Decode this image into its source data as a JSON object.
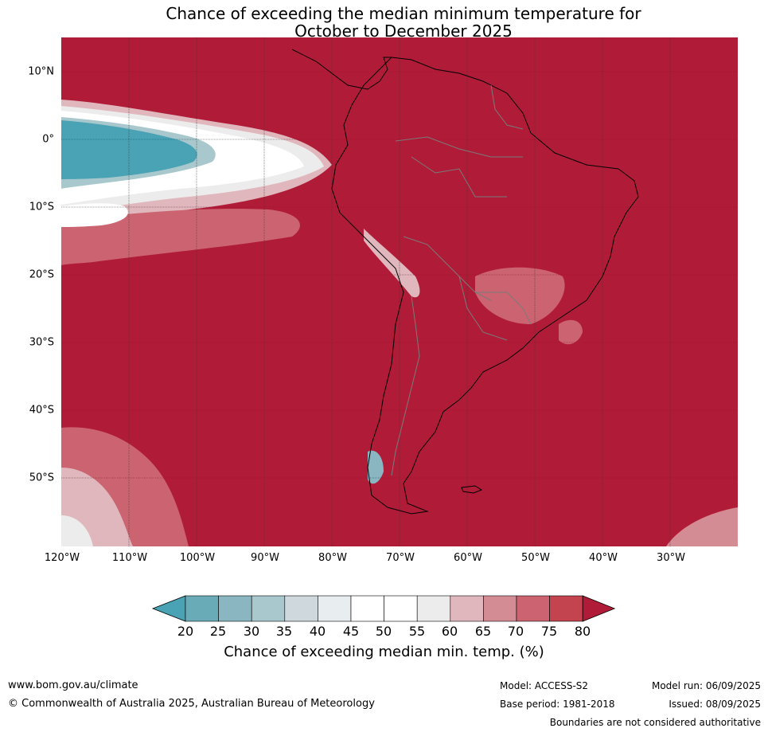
{
  "title": {
    "line1": "Chance of exceeding the median minimum temperature for",
    "line2": "October to December 2025"
  },
  "map": {
    "lat_labels": [
      "10°N",
      "0°",
      "10°S",
      "20°S",
      "30°S",
      "40°S",
      "50°S"
    ],
    "lon_labels": [
      "120°W",
      "110°W",
      "100°W",
      "90°W",
      "80°W",
      "70°W",
      "60°W",
      "50°W",
      "40°W",
      "30°W"
    ],
    "dominant_category": "80+",
    "colors": {
      "above_80": "#b01c38",
      "75_80": "#c3434f",
      "70_75": "#cb6470",
      "65_70": "#d48c94",
      "60_65": "#e0b7bc",
      "55_60": "#ececec",
      "45_55": "#ffffff",
      "40_45": "#e8eef0",
      "35_40": "#cfd8dc",
      "30_35": "#a9c8cd",
      "25_30": "#8ab6c2",
      "20_25": "#6aabb8",
      "below_20": "#4aa3b4"
    }
  },
  "colorbar": {
    "ticks": [
      "20",
      "25",
      "30",
      "35",
      "40",
      "45",
      "50",
      "55",
      "60",
      "65",
      "70",
      "75",
      "80"
    ],
    "colors": [
      "#4aa3b4",
      "#6aabb8",
      "#8ab6c2",
      "#a9c8cd",
      "#cfd8dc",
      "#e8eef0",
      "#ffffff",
      "#ffffff",
      "#ececec",
      "#e0b7bc",
      "#d48c94",
      "#cb6470",
      "#c3434f",
      "#b01c38"
    ],
    "label": "Chance of exceeding median min. temp. (%)"
  },
  "footer": {
    "website": "www.bom.gov.au/climate",
    "copyright": "© Commonwealth of Australia 2025, Australian Bureau of Meteorology",
    "model": "Model: ACCESS-S2",
    "base_period": "Base period: 1981-2018",
    "model_run": "Model run: 06/09/2025",
    "issued": "Issued: 08/09/2025",
    "boundaries_note": "Boundaries are not considered authoritative"
  }
}
